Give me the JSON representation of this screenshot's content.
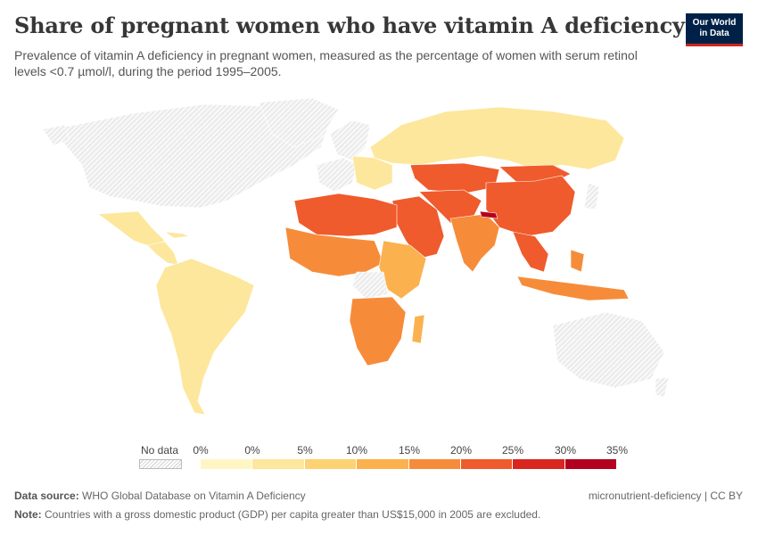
{
  "header": {
    "title": "Share of pregnant women who have vitamin A deficiency",
    "subtitle": "Prevalence of vitamin A deficiency in pregnant women, measured as the percentage of women with serum retinol levels <0.7 µmol/l, during the period 1995–2005.",
    "logo_line1": "Our World",
    "logo_line2": "in Data"
  },
  "legend": {
    "no_data_label": "No data",
    "tick_labels": [
      "0%",
      "0%",
      "5%",
      "10%",
      "15%",
      "20%",
      "25%",
      "30%",
      "35%"
    ],
    "colors": [
      "#fff6c4",
      "#fde79c",
      "#fdd272",
      "#fbb14e",
      "#f68c3a",
      "#ef5b2c",
      "#d9261f",
      "#b3001f"
    ]
  },
  "footer": {
    "source_label": "Data source:",
    "source_text": "WHO Global Database on Vitamin A Deficiency",
    "right_text": "micronutrient-deficiency | CC BY",
    "note_label": "Note:",
    "note_text": "Countries with a gross domestic product (GDP) per capita greater than US$15,000 in 2005 are excluded."
  },
  "map_colors": {
    "no_data": "#ececec",
    "russia": "#fde79c",
    "europe_east": "#fde79c",
    "south_america": "#fde79c",
    "central_america": "#fde79c",
    "north_africa": "#ef5b2c",
    "west_africa": "#f68c3a",
    "east_africa": "#fbb14e",
    "southern_africa": "#f68c3a",
    "middle_east": "#ef5b2c",
    "central_asia": "#ef5b2c",
    "china": "#ef5b2c",
    "india": "#f68c3a",
    "nepal": "#b3001f",
    "southeast_asia": "#ef5b2c",
    "indonesia": "#f68c3a"
  }
}
